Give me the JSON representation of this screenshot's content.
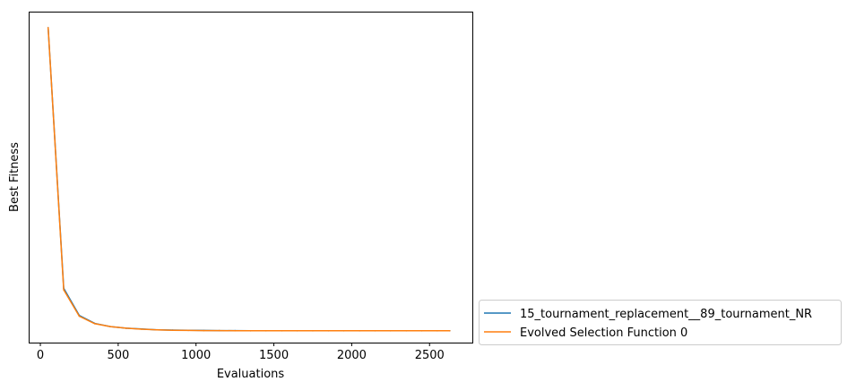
{
  "chart_data": {
    "type": "line",
    "xlabel": "Evaluations",
    "ylabel": "Best Fitness",
    "xlim": [
      -75,
      2775
    ],
    "ylim": [
      -1.1,
      19.6
    ],
    "x_ticks": [
      0,
      500,
      1000,
      1500,
      2000,
      2500
    ],
    "x_tick_labels": [
      "0",
      "500",
      "1000",
      "1500",
      "2000",
      "2500"
    ],
    "y_ticks_visible": false,
    "grid": false,
    "legend_position": "outside-right-bottom",
    "series": [
      {
        "name": "15_tournament_replacement__89_tournament_NR",
        "color": "#1f77b4",
        "x": [
          50,
          150,
          250,
          350,
          450,
          550,
          650,
          750,
          850,
          950,
          1050,
          1150,
          1250,
          1350,
          1450,
          1550,
          1650,
          1750,
          1850,
          1950,
          2050,
          2150,
          2250,
          2350,
          2450,
          2550,
          2630
        ],
        "y": [
          18.6,
          2.3,
          0.6,
          0.1,
          -0.1,
          -0.2,
          -0.25,
          -0.3,
          -0.32,
          -0.33,
          -0.34,
          -0.35,
          -0.35,
          -0.36,
          -0.36,
          -0.36,
          -0.36,
          -0.36,
          -0.36,
          -0.36,
          -0.36,
          -0.36,
          -0.36,
          -0.36,
          -0.36,
          -0.36,
          -0.36
        ]
      },
      {
        "name": "Evolved Selection Function 0",
        "color": "#ff7f0e",
        "x": [
          50,
          150,
          250,
          350,
          450,
          550,
          650,
          750,
          850,
          950,
          1050,
          1150,
          1250,
          1350,
          1450,
          1550,
          1650,
          1750,
          1850,
          1950,
          2050,
          2150,
          2250,
          2350,
          2450,
          2550,
          2630
        ],
        "y": [
          18.6,
          2.2,
          0.55,
          0.08,
          -0.1,
          -0.2,
          -0.26,
          -0.3,
          -0.33,
          -0.34,
          -0.35,
          -0.35,
          -0.36,
          -0.36,
          -0.36,
          -0.36,
          -0.36,
          -0.36,
          -0.36,
          -0.36,
          -0.36,
          -0.36,
          -0.36,
          -0.36,
          -0.36,
          -0.36,
          -0.36
        ]
      }
    ]
  }
}
